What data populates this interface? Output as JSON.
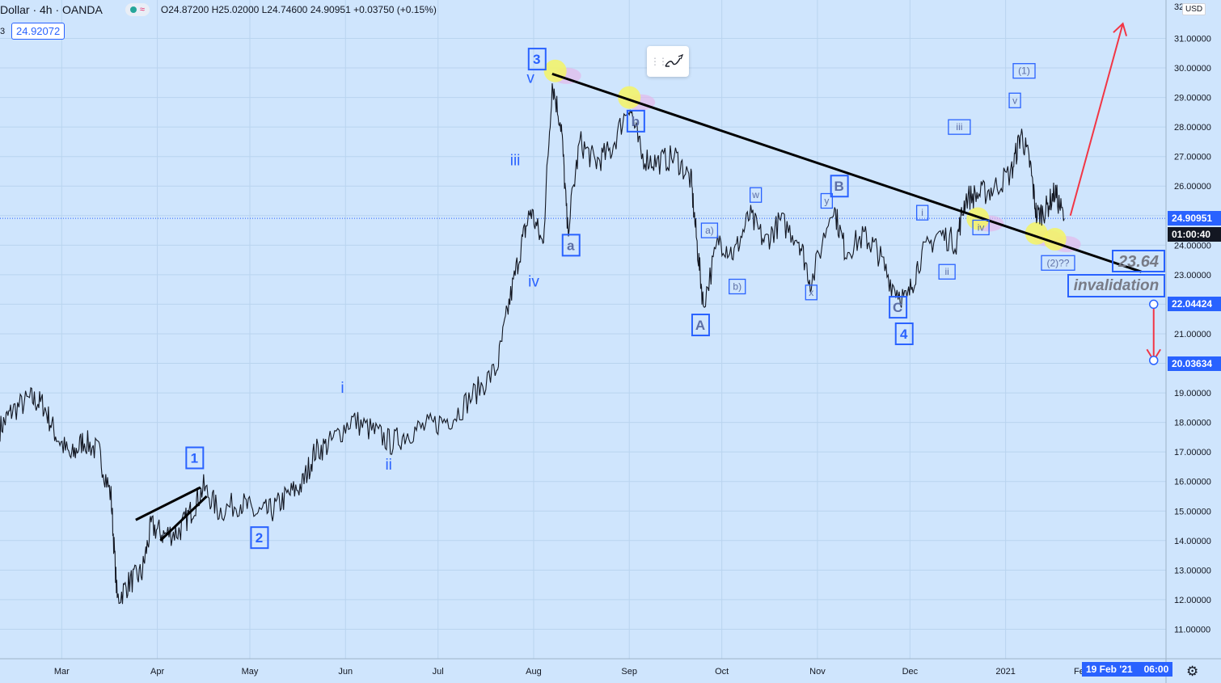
{
  "header": {
    "symbol": "Dollar · 4h · OANDA",
    "ohlc": "O24.87200 H25.02000 L24.74600 24.90951 +0.03750 (+0.15%)",
    "current_box": "24.92072",
    "left_fragment": "3"
  },
  "toolbar": {
    "grip_icon": "drag-grip-icon",
    "draw_icon": "brush-icon"
  },
  "colors": {
    "background": "#cfe5fd",
    "grid": "#b9d4ef",
    "price_line": "#131722",
    "wave_label": "#2962ff",
    "arrow": "#f23645",
    "highlight_circle": "#f5f564",
    "price_box": "#2962ff"
  },
  "price_axis": {
    "currency": "USD",
    "current_price": "24.90951",
    "countdown": "01:00:40",
    "level_upper": "22.04424",
    "level_lower": "20.03634",
    "top_cut_label": "32.0"
  },
  "time_axis": {
    "cursor_date": "19 Feb '21",
    "cursor_time": "06:00",
    "cut_label": "Fe",
    "settings_icon": "gear-icon"
  },
  "annotations": {
    "target": "23.64",
    "invalidation": "invalidation"
  },
  "chart_data": {
    "type": "line",
    "title": "",
    "xlabel": "",
    "ylabel": "",
    "x_ticks": [
      "Mar",
      "Apr",
      "May",
      "Jun",
      "Jul",
      "Aug",
      "Sep",
      "Oct",
      "Nov",
      "Dec",
      "2021"
    ],
    "y_ticks": [
      "11.00000",
      "12.00000",
      "13.00000",
      "14.00000",
      "15.00000",
      "16.00000",
      "17.00000",
      "18.00000",
      "19.00000",
      "20.00000",
      "21.00000",
      "22.00000",
      "23.00000",
      "24.00000",
      "25.00000",
      "26.00000",
      "27.00000",
      "28.00000",
      "29.00000",
      "30.00000",
      "31.00000"
    ],
    "ylim": [
      10.0,
      32.3
    ],
    "xlim": [
      "2020-02-10",
      "2021-02-22"
    ],
    "grid": true,
    "series": [
      {
        "values": [
          [
            "2020-02-10",
            17.8
          ],
          [
            "2020-02-14",
            18.4
          ],
          [
            "2020-02-20",
            18.8
          ],
          [
            "2020-02-24",
            18.6
          ],
          [
            "2020-02-28",
            17.6
          ],
          [
            "2020-03-04",
            16.8
          ],
          [
            "2020-03-08",
            17.4
          ],
          [
            "2020-03-13",
            17.0
          ],
          [
            "2020-03-17",
            15.5
          ],
          [
            "2020-03-19",
            12.0
          ],
          [
            "2020-03-23",
            12.6
          ],
          [
            "2020-03-27",
            12.9
          ],
          [
            "2020-03-30",
            14.5
          ],
          [
            "2020-04-03",
            14.2
          ],
          [
            "2020-04-08",
            14.3
          ],
          [
            "2020-04-12",
            15.0
          ],
          [
            "2020-04-16",
            15.8
          ],
          [
            "2020-04-21",
            15.0
          ],
          [
            "2020-04-28",
            15.3
          ],
          [
            "2020-05-03",
            14.9
          ],
          [
            "2020-05-08",
            15.0
          ],
          [
            "2020-05-13",
            15.5
          ],
          [
            "2020-05-18",
            15.9
          ],
          [
            "2020-05-22",
            17.0
          ],
          [
            "2020-05-27",
            17.3
          ],
          [
            "2020-06-03",
            18.1
          ],
          [
            "2020-06-10",
            17.7
          ],
          [
            "2020-06-16",
            17.3
          ],
          [
            "2020-06-22",
            17.7
          ],
          [
            "2020-06-29",
            17.9
          ],
          [
            "2020-07-06",
            18.2
          ],
          [
            "2020-07-13",
            19.0
          ],
          [
            "2020-07-20",
            19.8
          ],
          [
            "2020-07-24",
            22.0
          ],
          [
            "2020-07-28",
            24.0
          ],
          [
            "2020-07-31",
            25.2
          ],
          [
            "2020-08-04",
            24.0
          ],
          [
            "2020-08-07",
            29.5
          ],
          [
            "2020-08-10",
            28.0
          ],
          [
            "2020-08-12",
            24.5
          ],
          [
            "2020-08-16",
            27.5
          ],
          [
            "2020-08-21",
            26.8
          ],
          [
            "2020-08-26",
            27.2
          ],
          [
            "2020-09-01",
            28.8
          ],
          [
            "2020-09-05",
            27.0
          ],
          [
            "2020-09-10",
            26.8
          ],
          [
            "2020-09-16",
            27.0
          ],
          [
            "2020-09-21",
            26.2
          ],
          [
            "2020-09-23",
            24.0
          ],
          [
            "2020-09-25",
            22.0
          ],
          [
            "2020-09-30",
            24.2
          ],
          [
            "2020-10-05",
            23.7
          ],
          [
            "2020-10-10",
            25.0
          ],
          [
            "2020-10-15",
            24.1
          ],
          [
            "2020-10-20",
            24.8
          ],
          [
            "2020-10-26",
            24.2
          ],
          [
            "2020-10-30",
            22.7
          ],
          [
            "2020-11-06",
            25.4
          ],
          [
            "2020-11-10",
            23.8
          ],
          [
            "2020-11-16",
            24.3
          ],
          [
            "2020-11-20",
            23.9
          ],
          [
            "2020-11-25",
            22.7
          ],
          [
            "2020-11-30",
            22.1
          ],
          [
            "2020-12-04",
            23.5
          ],
          [
            "2020-12-10",
            24.4
          ],
          [
            "2020-12-16",
            24.1
          ],
          [
            "2020-12-19",
            25.6
          ],
          [
            "2020-12-23",
            25.7
          ],
          [
            "2020-12-28",
            25.9
          ],
          [
            "2021-01-03",
            26.5
          ],
          [
            "2021-01-06",
            27.8
          ],
          [
            "2021-01-09",
            26.7
          ],
          [
            "2021-01-11",
            25.0
          ],
          [
            "2021-01-14",
            25.2
          ],
          [
            "2021-01-17",
            25.8
          ],
          [
            "2021-01-20",
            24.9
          ]
        ]
      }
    ],
    "trendlines": [
      {
        "from": [
          "2020-08-07",
          29.8
        ],
        "to": [
          "2021-02-14",
          23.1
        ]
      },
      {
        "from": [
          "2020-03-25",
          14.7
        ],
        "to": [
          "2020-04-15",
          15.8
        ]
      },
      {
        "from": [
          "2020-04-02",
          14.0
        ],
        "to": [
          "2020-04-17",
          15.5
        ]
      }
    ],
    "arrows": [
      {
        "from": [
          "2021-01-22",
          25.0
        ],
        "to": [
          "2021-02-08",
          31.5
        ]
      },
      {
        "from": [
          "2021-02-18",
          22.0
        ],
        "to": [
          "2021-02-18",
          20.1
        ]
      }
    ],
    "highlights": [
      [
        "2020-08-08",
        29.9
      ],
      [
        "2020-09-01",
        29.0
      ],
      [
        "2020-12-23",
        24.9
      ],
      [
        "2021-01-11",
        24.4
      ],
      [
        "2021-01-17",
        24.2
      ]
    ],
    "wave_labels_boxed": [
      {
        "text": "1",
        "at": [
          "2020-04-13",
          16.8
        ]
      },
      {
        "text": "2",
        "at": [
          "2020-05-04",
          14.1
        ]
      },
      {
        "text": "3",
        "at": [
          "2020-08-02",
          30.3
        ]
      },
      {
        "text": "a",
        "at": [
          "2020-08-13",
          24.0
        ]
      },
      {
        "text": "b",
        "at": [
          "2020-09-03",
          28.2
        ]
      },
      {
        "text": "A",
        "at": [
          "2020-09-24",
          21.3
        ]
      },
      {
        "text": "B",
        "at": [
          "2020-11-08",
          26.0
        ]
      },
      {
        "text": "C",
        "at": [
          "2020-11-27",
          21.9
        ]
      },
      {
        "text": "4",
        "at": [
          "2020-11-29",
          21.0
        ]
      }
    ],
    "wave_labels_small": [
      {
        "text": "a)",
        "at": [
          "2020-09-27",
          24.5
        ]
      },
      {
        "text": "b)",
        "at": [
          "2020-10-06",
          22.6
        ]
      },
      {
        "text": "w",
        "at": [
          "2020-10-12",
          25.7
        ]
      },
      {
        "text": "x",
        "at": [
          "2020-10-30",
          22.4
        ]
      },
      {
        "text": "y",
        "at": [
          "2020-11-04",
          25.5
        ]
      },
      {
        "text": "i",
        "at": [
          "2020-12-05",
          25.1
        ]
      },
      {
        "text": "ii",
        "at": [
          "2020-12-13",
          23.1
        ]
      },
      {
        "text": "iii",
        "at": [
          "2020-12-17",
          28.0
        ]
      },
      {
        "text": "iv",
        "at": [
          "2020-12-24",
          24.6
        ]
      },
      {
        "text": "v",
        "at": [
          "2021-01-04",
          28.9
        ]
      },
      {
        "text": "(1)",
        "at": [
          "2021-01-07",
          29.9
        ]
      },
      {
        "text": "(2)??",
        "at": [
          "2021-01-18",
          23.4
        ]
      }
    ],
    "wave_labels_text": [
      {
        "text": "i",
        "at": [
          "2020-05-31",
          19.0
        ]
      },
      {
        "text": "ii",
        "at": [
          "2020-06-15",
          16.4
        ]
      },
      {
        "text": "iii",
        "at": [
          "2020-07-26",
          26.7
        ]
      },
      {
        "text": "iv",
        "at": [
          "2020-08-01",
          22.6
        ]
      },
      {
        "text": "v",
        "at": [
          "2020-07-31",
          29.5
        ]
      }
    ]
  }
}
